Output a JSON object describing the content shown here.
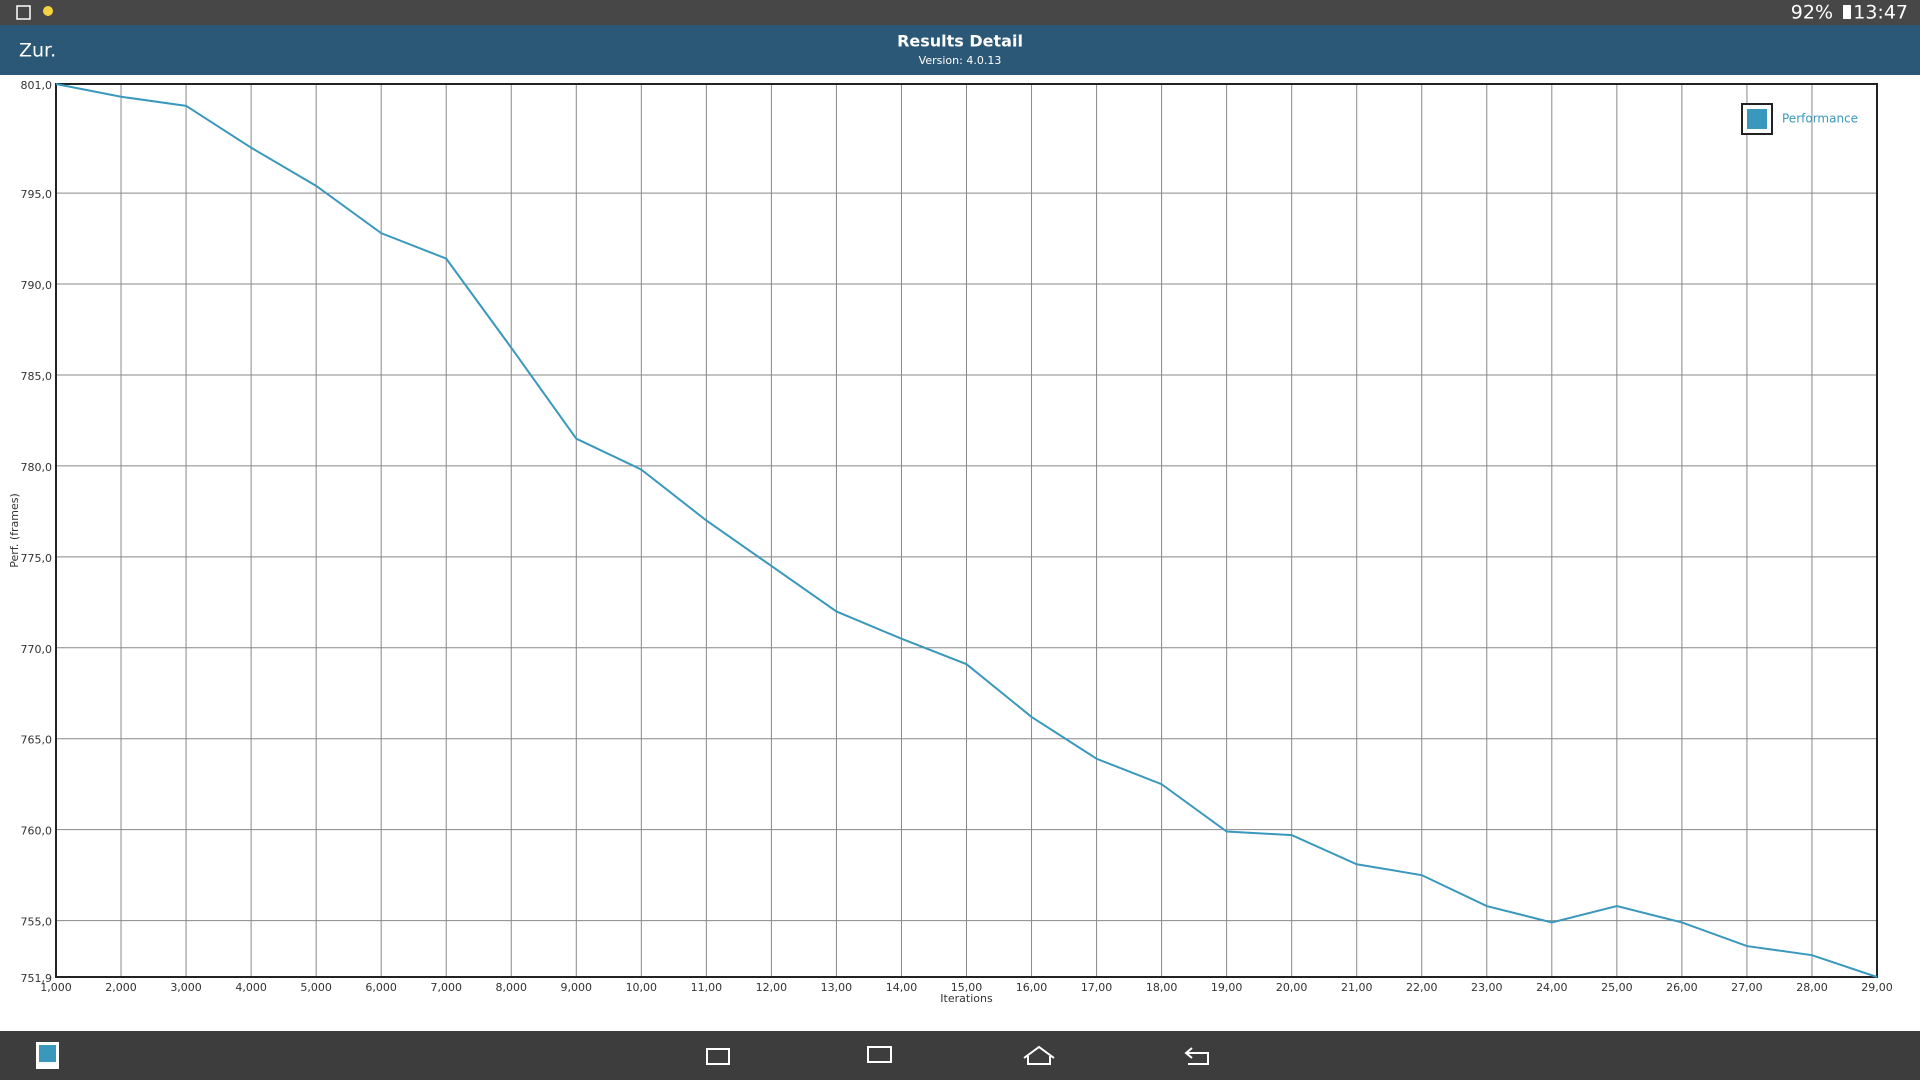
{
  "status_bar": {
    "battery": "92%",
    "time": "13:47"
  },
  "header": {
    "back": "Zur.",
    "title": "Results Detail",
    "subtitle": "Version: 4.0.13"
  },
  "chart_data": {
    "type": "line",
    "x_label": "Iterations",
    "y_label": "Perf. (frames)",
    "x": [
      1,
      2,
      3,
      4,
      5,
      6,
      7,
      8,
      9,
      10,
      11,
      12,
      13,
      14,
      15,
      16,
      17,
      18,
      19,
      20,
      21,
      22,
      23,
      24,
      25,
      26,
      27,
      28,
      29
    ],
    "series": [
      {
        "name": "Performance",
        "color": "#3a98bd",
        "values": [
          801.0,
          800.3,
          799.8,
          797.5,
          795.4,
          792.8,
          791.4,
          786.5,
          781.5,
          779.8,
          777.0,
          774.5,
          772.0,
          770.5,
          769.1,
          766.2,
          763.9,
          762.5,
          759.9,
          759.7,
          758.1,
          757.5,
          755.8,
          754.9,
          755.8,
          754.9,
          753.6,
          753.1,
          751.9
        ]
      }
    ],
    "xlim": [
      1,
      29
    ],
    "ylim": [
      751.9,
      801.0
    ],
    "xticks": [
      {
        "value": 1,
        "label": "1,000"
      },
      {
        "value": 2,
        "label": "2,000"
      },
      {
        "value": 3,
        "label": "3,000"
      },
      {
        "value": 4,
        "label": "4,000"
      },
      {
        "value": 5,
        "label": "5,000"
      },
      {
        "value": 6,
        "label": "6,000"
      },
      {
        "value": 7,
        "label": "7,000"
      },
      {
        "value": 8,
        "label": "8,000"
      },
      {
        "value": 9,
        "label": "9,000"
      },
      {
        "value": 10,
        "label": "10,00"
      },
      {
        "value": 11,
        "label": "11,00"
      },
      {
        "value": 12,
        "label": "12,00"
      },
      {
        "value": 13,
        "label": "13,00"
      },
      {
        "value": 14,
        "label": "14,00"
      },
      {
        "value": 15,
        "label": "15,00"
      },
      {
        "value": 16,
        "label": "16,00"
      },
      {
        "value": 17,
        "label": "17,00"
      },
      {
        "value": 18,
        "label": "18,00"
      },
      {
        "value": 19,
        "label": "19,00"
      },
      {
        "value": 20,
        "label": "20,00"
      },
      {
        "value": 21,
        "label": "21,00"
      },
      {
        "value": 22,
        "label": "22,00"
      },
      {
        "value": 23,
        "label": "23,00"
      },
      {
        "value": 24,
        "label": "24,00"
      },
      {
        "value": 25,
        "label": "25,00"
      },
      {
        "value": 26,
        "label": "26,00"
      },
      {
        "value": 27,
        "label": "27,00"
      },
      {
        "value": 28,
        "label": "28,00"
      },
      {
        "value": 29,
        "label": "29,00"
      }
    ],
    "yticks": [
      {
        "value": 751.9,
        "label": "751,9"
      },
      {
        "value": 755,
        "label": "755,0"
      },
      {
        "value": 760,
        "label": "760,0"
      },
      {
        "value": 765,
        "label": "765,0"
      },
      {
        "value": 770,
        "label": "770,0"
      },
      {
        "value": 775,
        "label": "775,0"
      },
      {
        "value": 780,
        "label": "780,0"
      },
      {
        "value": 785,
        "label": "785,0"
      },
      {
        "value": 790,
        "label": "790,0"
      },
      {
        "value": 795,
        "label": "795,0"
      },
      {
        "value": 801,
        "label": "801,0"
      }
    ],
    "grid": true,
    "legend": "upper right"
  }
}
